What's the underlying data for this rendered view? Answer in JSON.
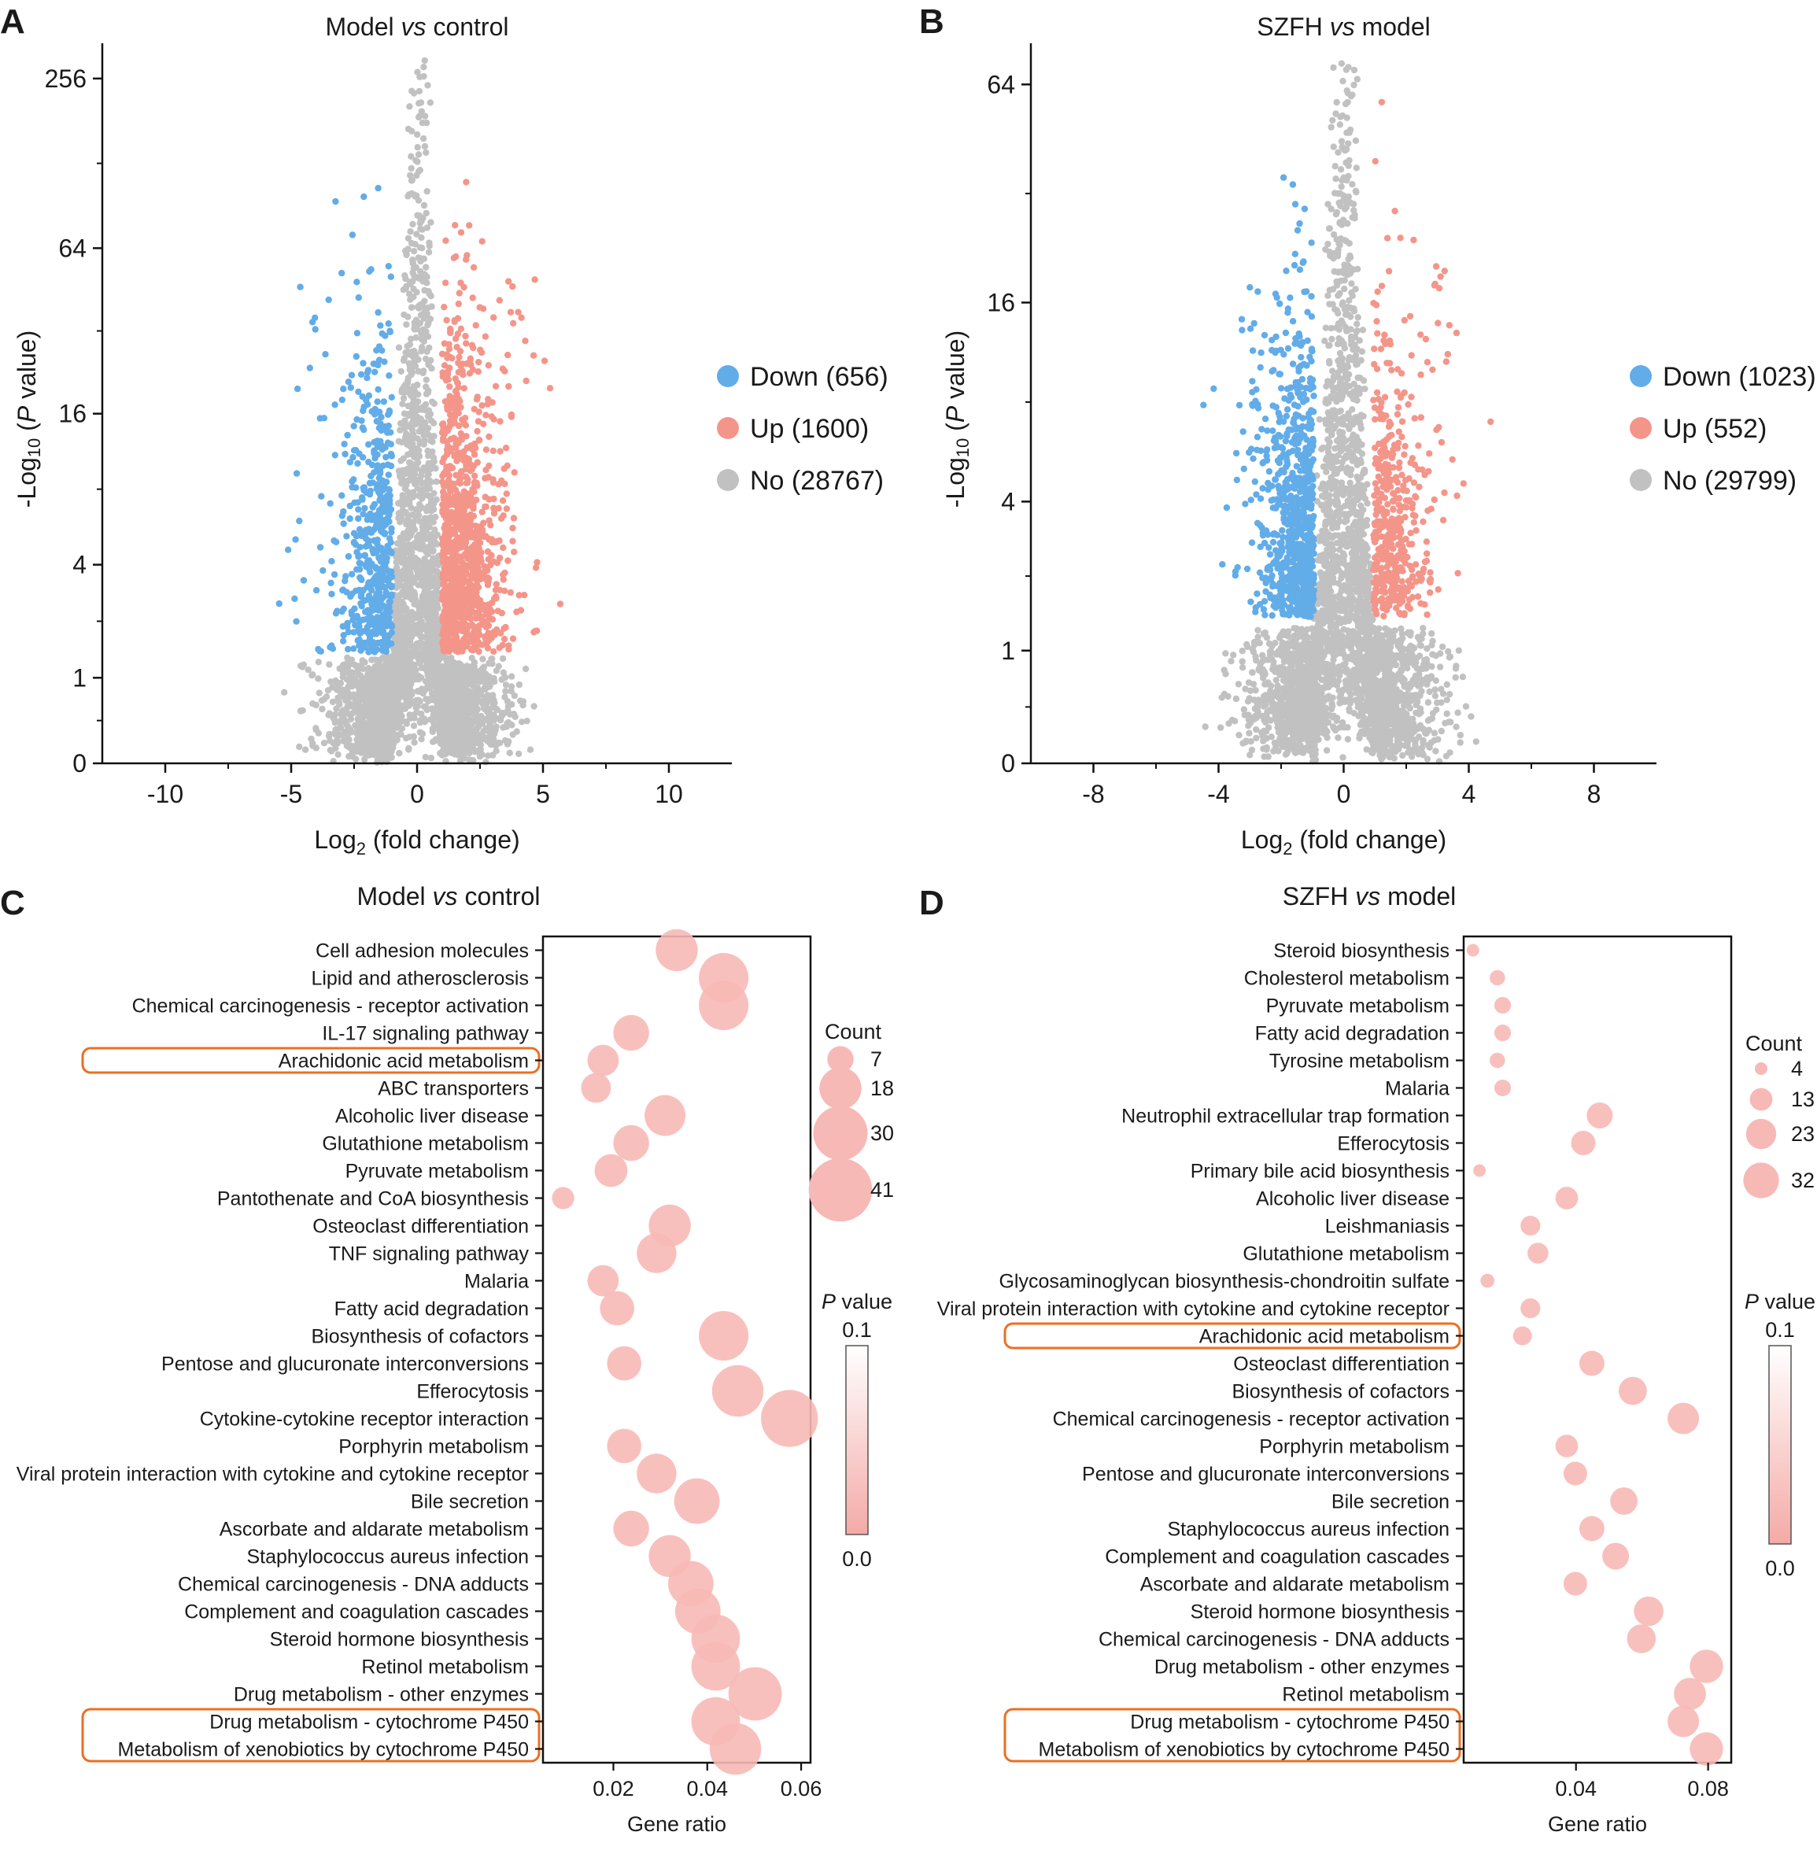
{
  "colors": {
    "down": "#62ace8",
    "up": "#f4958a",
    "no": "#c1c1c1",
    "bubble": "#f7b9b6",
    "highlight": "#ec6f22",
    "grad_top": "#ffffff",
    "grad_bottom": "#f4aaa6"
  },
  "chart_data": [
    {
      "panel": "A",
      "type": "scatter",
      "title_pre": "Model ",
      "title_vs": "vs",
      "title_post": " control",
      "xlabel_pre": "Log",
      "xlabel_sub": "2",
      "xlabel_post": " (fold change)",
      "ylabel_pre": "-Log",
      "ylabel_sub": "10",
      "ylabel_mid": " (",
      "ylabel_p": "P",
      "ylabel_post": " value)",
      "y_scale": "log2",
      "xlim": [
        -12.5,
        12.5
      ],
      "ylim": [
        0,
        300
      ],
      "x_ticks": [
        -10,
        -5,
        0,
        5,
        10
      ],
      "x_tick_labels": [
        "-10",
        "-5",
        "0",
        "5",
        "10"
      ],
      "y_ticks": [
        0,
        1,
        4,
        16,
        64,
        256
      ],
      "y_tick_labels": [
        "0",
        "1",
        "4",
        "16",
        "64",
        "256"
      ],
      "legend_position": "right",
      "legend": [
        {
          "label": "Down (656)",
          "color": "#62ace8"
        },
        {
          "label": "Up (1600)",
          "color": "#f4958a"
        },
        {
          "label": "No (28767)",
          "color": "#c1c1c1"
        }
      ]
    },
    {
      "panel": "B",
      "type": "scatter",
      "title_pre": "SZFH ",
      "title_vs": "vs",
      "title_post": " model",
      "xlabel_pre": "Log",
      "xlabel_sub": "2",
      "xlabel_post": " (fold change)",
      "ylabel_pre": "-Log",
      "ylabel_sub": "10",
      "ylabel_mid": " (",
      "ylabel_p": "P",
      "ylabel_post": " value)",
      "y_scale": "log2",
      "xlim": [
        -10,
        10
      ],
      "ylim": [
        0,
        75
      ],
      "x_ticks": [
        -8,
        -4,
        0,
        4,
        8
      ],
      "x_tick_labels": [
        "-8",
        "-4",
        "0",
        "4",
        "8"
      ],
      "y_ticks": [
        0,
        1,
        4,
        16,
        64
      ],
      "y_tick_labels": [
        "0",
        "1",
        "4",
        "16",
        "64"
      ],
      "legend_position": "right",
      "legend": [
        {
          "label": "Down (1023)",
          "color": "#62ace8"
        },
        {
          "label": "Up (552)",
          "color": "#f4958a"
        },
        {
          "label": "No (29799)",
          "color": "#c1c1c1"
        }
      ]
    },
    {
      "panel": "C",
      "type": "scatter",
      "title_pre": "Model ",
      "title_vs": "vs",
      "title_post": " control",
      "xlabel": "Gene ratio",
      "xlim": [
        0.005,
        0.062
      ],
      "x_ticks": [
        0.02,
        0.04,
        0.06
      ],
      "x_tick_labels": [
        "0.02",
        "0.04",
        "0.06"
      ],
      "size_legend_title": "Count",
      "size_legend": [
        {
          "label": "7",
          "value": 7
        },
        {
          "label": "18",
          "value": 18
        },
        {
          "label": "30",
          "value": 30
        },
        {
          "label": "41",
          "value": 41
        }
      ],
      "color_legend_title_p": "P",
      "color_legend_title_rest": " value",
      "color_legend_top": "0.1",
      "color_legend_bottom": "0.0",
      "highlighted_groups": [
        [
          4
        ],
        [
          28,
          29
        ]
      ],
      "pathways": [
        {
          "name": "Cell adhesion molecules",
          "ratio": 0.0335,
          "count": 18
        },
        {
          "name": "Lipid and atherosclerosis",
          "ratio": 0.0435,
          "count": 25
        },
        {
          "name": "Chemical carcinogenesis - receptor activation",
          "ratio": 0.0435,
          "count": 25
        },
        {
          "name": "IL-17 signaling pathway",
          "ratio": 0.0238,
          "count": 13
        },
        {
          "name": "Arachidonic acid metabolism",
          "ratio": 0.0178,
          "count": 10
        },
        {
          "name": "ABC transporters",
          "ratio": 0.0163,
          "count": 9
        },
        {
          "name": "Alcoholic liver disease",
          "ratio": 0.031,
          "count": 17
        },
        {
          "name": "Glutathione metabolism",
          "ratio": 0.0238,
          "count": 13
        },
        {
          "name": "Pyruvate metabolism",
          "ratio": 0.0195,
          "count": 11
        },
        {
          "name": "Pantothenate and CoA biosynthesis",
          "ratio": 0.0093,
          "count": 5
        },
        {
          "name": "Osteoclast differentiation",
          "ratio": 0.032,
          "count": 18
        },
        {
          "name": "TNF signaling pathway",
          "ratio": 0.0292,
          "count": 16
        },
        {
          "name": "Malaria",
          "ratio": 0.0178,
          "count": 10
        },
        {
          "name": "Fatty acid degradation",
          "ratio": 0.0208,
          "count": 12
        },
        {
          "name": "Biosynthesis of cofactors",
          "ratio": 0.0435,
          "count": 25
        },
        {
          "name": "Pentose and glucuronate interconversions",
          "ratio": 0.0223,
          "count": 12
        },
        {
          "name": "Efferocytosis",
          "ratio": 0.0465,
          "count": 27
        },
        {
          "name": "Cytokine-cytokine receptor interaction",
          "ratio": 0.0575,
          "count": 33
        },
        {
          "name": "Porphyrin metabolism",
          "ratio": 0.0223,
          "count": 12
        },
        {
          "name": "Viral protein interaction with cytokine and cytokine receptor",
          "ratio": 0.0292,
          "count": 16
        },
        {
          "name": "Bile secretion",
          "ratio": 0.0378,
          "count": 21
        },
        {
          "name": "Ascorbate and aldarate metabolism",
          "ratio": 0.0238,
          "count": 13
        },
        {
          "name": "Staphylococcus aureus infection",
          "ratio": 0.032,
          "count": 18
        },
        {
          "name": "Chemical carcinogenesis - DNA adducts",
          "ratio": 0.0365,
          "count": 21
        },
        {
          "name": "Complement and coagulation cascades",
          "ratio": 0.038,
          "count": 21
        },
        {
          "name": "Steroid hormone biosynthesis",
          "ratio": 0.0418,
          "count": 24
        },
        {
          "name": "Retinol metabolism",
          "ratio": 0.0418,
          "count": 24
        },
        {
          "name": "Drug metabolism - other enzymes",
          "ratio": 0.0502,
          "count": 29
        },
        {
          "name": "Drug metabolism - cytochrome P450",
          "ratio": 0.0418,
          "count": 24
        },
        {
          "name": "Metabolism of xenobiotics by cytochrome P450",
          "ratio": 0.046,
          "count": 27
        }
      ]
    },
    {
      "panel": "D",
      "type": "scatter",
      "title_pre": "SZFH ",
      "title_vs": "vs",
      "title_post": " model",
      "xlabel": "Gene ratio",
      "xlim": [
        0.006,
        0.087
      ],
      "x_ticks": [
        0.04,
        0.08
      ],
      "x_tick_labels": [
        "0.04",
        "0.08"
      ],
      "size_legend_title": "Count",
      "size_legend": [
        {
          "label": "4",
          "value": 4
        },
        {
          "label": "13",
          "value": 13
        },
        {
          "label": "23",
          "value": 23
        },
        {
          "label": "32",
          "value": 32
        }
      ],
      "color_legend_title_p": "P",
      "color_legend_title_rest": " value",
      "color_legend_top": "0.1",
      "color_legend_bottom": "0.0",
      "highlighted_groups": [
        [
          14
        ],
        [
          28,
          29
        ]
      ],
      "pathways": [
        {
          "name": "Steroid biosynthesis",
          "ratio": 0.0088,
          "count": 4
        },
        {
          "name": "Cholesterol metabolism",
          "ratio": 0.0162,
          "count": 6
        },
        {
          "name": "Pyruvate metabolism",
          "ratio": 0.0178,
          "count": 7
        },
        {
          "name": "Fatty acid degradation",
          "ratio": 0.0178,
          "count": 7
        },
        {
          "name": "Tyrosine metabolism",
          "ratio": 0.0162,
          "count": 6
        },
        {
          "name": "Malaria",
          "ratio": 0.0178,
          "count": 7
        },
        {
          "name": "Neutrophil extracellular trap formation",
          "ratio": 0.0472,
          "count": 17
        },
        {
          "name": "Efferocytosis",
          "ratio": 0.0422,
          "count": 15
        },
        {
          "name": "Primary bile acid biosynthesis",
          "ratio": 0.0108,
          "count": 4
        },
        {
          "name": "Alcoholic liver disease",
          "ratio": 0.0372,
          "count": 13
        },
        {
          "name": "Leishmaniasis",
          "ratio": 0.0262,
          "count": 10
        },
        {
          "name": "Glutathione metabolism",
          "ratio": 0.0285,
          "count": 11
        },
        {
          "name": "Glycosaminoglycan biosynthesis-chondroitin sulfate",
          "ratio": 0.0132,
          "count": 5
        },
        {
          "name": "Viral protein interaction with cytokine and cytokine receptor",
          "ratio": 0.0262,
          "count": 10
        },
        {
          "name": "Arachidonic acid metabolism",
          "ratio": 0.0238,
          "count": 9
        },
        {
          "name": "Osteoclast differentiation",
          "ratio": 0.0448,
          "count": 16
        },
        {
          "name": "Biosynthesis of cofactors",
          "ratio": 0.0572,
          "count": 20
        },
        {
          "name": "Chemical carcinogenesis - receptor activation",
          "ratio": 0.0725,
          "count": 25
        },
        {
          "name": "Porphyrin metabolism",
          "ratio": 0.0372,
          "count": 13
        },
        {
          "name": "Pentose and glucuronate interconversions",
          "ratio": 0.0398,
          "count": 14
        },
        {
          "name": "Bile secretion",
          "ratio": 0.0545,
          "count": 19
        },
        {
          "name": "Staphylococcus aureus infection",
          "ratio": 0.0448,
          "count": 16
        },
        {
          "name": "Complement and coagulation cascades",
          "ratio": 0.052,
          "count": 18
        },
        {
          "name": "Ascorbate and aldarate metabolism",
          "ratio": 0.0398,
          "count": 14
        },
        {
          "name": "Steroid hormone biosynthesis",
          "ratio": 0.062,
          "count": 22
        },
        {
          "name": "Chemical carcinogenesis - DNA adducts",
          "ratio": 0.0598,
          "count": 21
        },
        {
          "name": "Drug metabolism - other enzymes",
          "ratio": 0.0795,
          "count": 28
        },
        {
          "name": "Retinol metabolism",
          "ratio": 0.0745,
          "count": 26
        },
        {
          "name": "Drug metabolism - cytochrome P450",
          "ratio": 0.0725,
          "count": 25
        },
        {
          "name": "Metabolism of xenobiotics by cytochrome P450",
          "ratio": 0.0795,
          "count": 28
        }
      ]
    }
  ],
  "panel_labels": [
    "A",
    "B",
    "C",
    "D"
  ]
}
